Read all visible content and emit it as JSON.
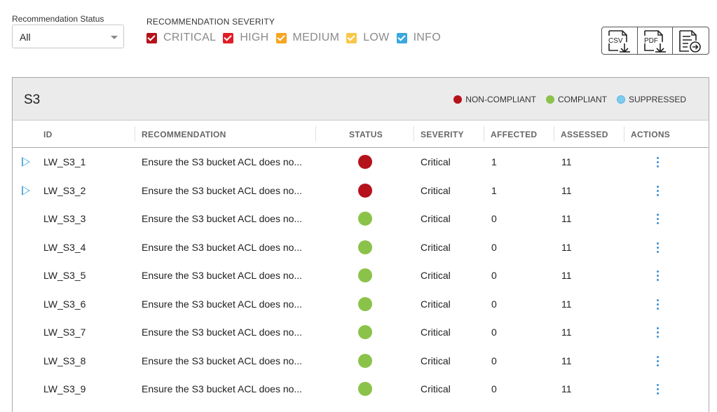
{
  "filters": {
    "status_label": "Recommendation Status",
    "status_value": "All",
    "severity_label": "RECOMMENDATION SEVERITY",
    "severities": [
      {
        "label": "CRITICAL",
        "color": "#b5121b",
        "checked": true
      },
      {
        "label": "HIGH",
        "color": "#e01e26",
        "checked": true
      },
      {
        "label": "MEDIUM",
        "color": "#f5a623",
        "checked": true
      },
      {
        "label": "LOW",
        "color": "#f8c84a",
        "checked": true
      },
      {
        "label": "INFO",
        "color": "#3aa8e0",
        "checked": true
      }
    ]
  },
  "export": {
    "csv": "CSV",
    "pdf": "PDF",
    "report_icon": "document-arrow-icon"
  },
  "panel": {
    "title": "S3",
    "legend": [
      {
        "label": "NON-COMPLIANT",
        "color": "#b5121b"
      },
      {
        "label": "COMPLIANT",
        "color": "#8bc34a"
      },
      {
        "label": "SUPPRESSED",
        "color": "#7ecbef"
      }
    ]
  },
  "table": {
    "headers": {
      "id": "ID",
      "recommendation": "RECOMMENDATION",
      "status": "STATUS",
      "severity": "SEVERITY",
      "affected": "AFFECTED",
      "assessed": "ASSESSED",
      "actions": "ACTIONS"
    },
    "rows": [
      {
        "id": "LW_S3_1",
        "recommendation": "Ensure the S3 bucket ACL does no...",
        "status": "non-compliant",
        "severity": "Critical",
        "affected": "1",
        "assessed": "11",
        "expandable": true
      },
      {
        "id": "LW_S3_2",
        "recommendation": "Ensure the S3 bucket ACL does no...",
        "status": "non-compliant",
        "severity": "Critical",
        "affected": "1",
        "assessed": "11",
        "expandable": true
      },
      {
        "id": "LW_S3_3",
        "recommendation": "Ensure the S3 bucket ACL does no...",
        "status": "compliant",
        "severity": "Critical",
        "affected": "0",
        "assessed": "11",
        "expandable": false
      },
      {
        "id": "LW_S3_4",
        "recommendation": "Ensure the S3 bucket ACL does no...",
        "status": "compliant",
        "severity": "Critical",
        "affected": "0",
        "assessed": "11",
        "expandable": false
      },
      {
        "id": "LW_S3_5",
        "recommendation": "Ensure the S3 bucket ACL does no...",
        "status": "compliant",
        "severity": "Critical",
        "affected": "0",
        "assessed": "11",
        "expandable": false
      },
      {
        "id": "LW_S3_6",
        "recommendation": "Ensure the S3 bucket ACL does no...",
        "status": "compliant",
        "severity": "Critical",
        "affected": "0",
        "assessed": "11",
        "expandable": false
      },
      {
        "id": "LW_S3_7",
        "recommendation": "Ensure the S3 bucket ACL does no...",
        "status": "compliant",
        "severity": "Critical",
        "affected": "0",
        "assessed": "11",
        "expandable": false
      },
      {
        "id": "LW_S3_8",
        "recommendation": "Ensure the S3 bucket ACL does no...",
        "status": "compliant",
        "severity": "Critical",
        "affected": "0",
        "assessed": "11",
        "expandable": false
      },
      {
        "id": "LW_S3_9",
        "recommendation": "Ensure the S3 bucket ACL does no...",
        "status": "compliant",
        "severity": "Critical",
        "affected": "0",
        "assessed": "11",
        "expandable": false
      }
    ]
  },
  "colors": {
    "non-compliant": "#b5121b",
    "compliant": "#8bc34a",
    "suppressed": "#7ecbef"
  }
}
